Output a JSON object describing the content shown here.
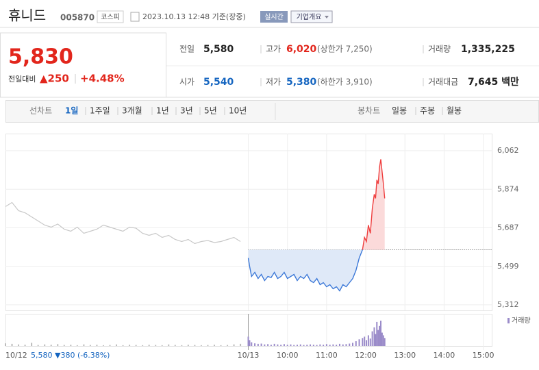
{
  "header": {
    "name": "휴니드",
    "code": "005870",
    "market": "코스피",
    "timestamp": "2023.10.13 12:48 기준(장중)",
    "realtime": "실시간",
    "company_info": "기업개요"
  },
  "quote": {
    "price": "5,830",
    "change_label": "전일대비",
    "change": "▲250",
    "change_pct": "+4.48%",
    "cells": [
      [
        {
          "label": "전일",
          "value": "5,580"
        },
        {
          "label": "고가",
          "value": "6,020",
          "note": "(상한가 7,250)"
        },
        {
          "label": "거래량",
          "value": "1,335,225"
        }
      ],
      [
        {
          "label": "시가",
          "value": "5,540"
        },
        {
          "label": "저가",
          "value": "5,380",
          "note": "(하한가 3,910)"
        },
        {
          "label": "거래대금",
          "value": "7,645 백만"
        }
      ]
    ]
  },
  "toolbar": {
    "line_label": "선차트",
    "line_periods": [
      "1일",
      "1주일",
      "3개월",
      "1년",
      "3년",
      "5년",
      "10년"
    ],
    "selected_index": 0,
    "candle_label": "봉차트",
    "candle_periods": [
      "일봉",
      "주봉",
      "월봉"
    ]
  },
  "chart_data": {
    "type": "line",
    "base_value": 5580,
    "xlim": [
      -372,
      373
    ],
    "xticks": [
      {
        "value": -372,
        "label": "10/12"
      },
      {
        "value": 0,
        "label": "10/13"
      },
      {
        "value": 60,
        "label": "10:00"
      },
      {
        "value": 120,
        "label": "11:00"
      },
      {
        "value": 180,
        "label": "12:00"
      },
      {
        "value": 240,
        "label": "13:00"
      },
      {
        "value": 300,
        "label": "14:00"
      },
      {
        "value": 360,
        "label": "15:00"
      }
    ],
    "ylim": [
      5285,
      6145
    ],
    "yticks": [
      {
        "value": 6062,
        "label": "6,062"
      },
      {
        "value": 5874,
        "label": "5,874"
      },
      {
        "value": 5687,
        "label": "5,687"
      },
      {
        "value": 5499,
        "label": "5,499"
      },
      {
        "value": 5312,
        "label": "5,312"
      }
    ],
    "prev_day_summary": "5,580 ▼380 (-6.38%)",
    "series": [
      {
        "name": "10/12",
        "color": "#c8c8c8",
        "x": [
          -372,
          -362,
          -352,
          -342,
          -332,
          -322,
          -312,
          -302,
          -292,
          -282,
          -272,
          -262,
          -252,
          -242,
          -232,
          -222,
          -212,
          -202,
          -192,
          -182,
          -172,
          -162,
          -152,
          -142,
          -132,
          -122,
          -112,
          -102,
          -92,
          -82,
          -72,
          -62,
          -52,
          -42,
          -32,
          -22,
          -12
        ],
        "values": [
          5790,
          5810,
          5770,
          5760,
          5740,
          5720,
          5700,
          5690,
          5705,
          5680,
          5670,
          5690,
          5660,
          5670,
          5680,
          5700,
          5690,
          5680,
          5670,
          5690,
          5685,
          5660,
          5650,
          5660,
          5640,
          5650,
          5630,
          5620,
          5630,
          5610,
          5620,
          5625,
          5615,
          5620,
          5630,
          5640,
          5620
        ]
      },
      {
        "name": "10/13",
        "color": "#3b78d8",
        "up_color": "#ef3e3e",
        "x": [
          0,
          2,
          5,
          10,
          15,
          20,
          25,
          30,
          35,
          40,
          45,
          50,
          55,
          60,
          65,
          70,
          75,
          80,
          85,
          90,
          95,
          100,
          105,
          110,
          115,
          120,
          125,
          130,
          135,
          140,
          145,
          150,
          155,
          160,
          165,
          170,
          175,
          178,
          181,
          184,
          187,
          190,
          193,
          195,
          197,
          199,
          201,
          203,
          205,
          207,
          209
        ],
        "values": [
          5540,
          5500,
          5450,
          5470,
          5440,
          5460,
          5430,
          5450,
          5445,
          5470,
          5440,
          5450,
          5470,
          5440,
          5450,
          5460,
          5430,
          5450,
          5440,
          5460,
          5430,
          5420,
          5440,
          5410,
          5420,
          5400,
          5410,
          5390,
          5400,
          5380,
          5410,
          5400,
          5420,
          5440,
          5480,
          5540,
          5580,
          5640,
          5620,
          5700,
          5660,
          5780,
          5850,
          5830,
          5920,
          5900,
          5980,
          6020,
          5960,
          5900,
          5830
        ]
      }
    ],
    "volume": {
      "name": "거래량",
      "color": "#9a8bc9",
      "prev_color": "#bbbbbb",
      "ylim": [
        0,
        100
      ],
      "prev_values": [
        10,
        8,
        6,
        5,
        12,
        4,
        6,
        5,
        7,
        4,
        5,
        3,
        6,
        4,
        5,
        3,
        4,
        6,
        3,
        5,
        4,
        3,
        5,
        4,
        3,
        6,
        4,
        3,
        5,
        4,
        3,
        4,
        5,
        3,
        4,
        6,
        8
      ],
      "values": [
        35,
        22,
        14,
        10,
        8,
        9,
        6,
        7,
        5,
        8,
        6,
        5,
        7,
        5,
        6,
        4,
        5,
        6,
        4,
        5,
        6,
        5,
        4,
        6,
        5,
        7,
        5,
        6,
        5,
        8,
        6,
        7,
        9,
        12,
        18,
        25,
        30,
        35,
        22,
        40,
        28,
        55,
        70,
        45,
        90,
        60,
        75,
        95,
        50,
        40,
        30
      ]
    }
  }
}
